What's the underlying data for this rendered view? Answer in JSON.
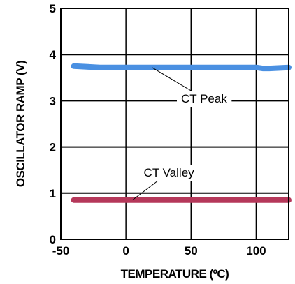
{
  "chart_data": {
    "type": "line",
    "xlabel": "TEMPERATURE (ºC)",
    "ylabel": "OSCILLATOR RAMP (V)",
    "xlim": [
      -50,
      125
    ],
    "ylim": [
      0,
      5
    ],
    "x_ticks": [
      "-50",
      "0",
      "50",
      "100"
    ],
    "y_ticks": [
      "0",
      "1",
      "2",
      "3",
      "4",
      "5"
    ],
    "grid": true,
    "series": [
      {
        "name": "CT Peak",
        "color": "#4a90e2",
        "x": [
          -40,
          -20,
          0,
          25,
          50,
          75,
          100,
          105,
          110,
          125
        ],
        "y": [
          3.75,
          3.72,
          3.72,
          3.72,
          3.72,
          3.72,
          3.72,
          3.7,
          3.7,
          3.72
        ]
      },
      {
        "name": "CT Valley",
        "color": "#b5385a",
        "x": [
          -40,
          -20,
          0,
          25,
          50,
          75,
          100,
          125
        ],
        "y": [
          0.85,
          0.85,
          0.85,
          0.85,
          0.85,
          0.85,
          0.85,
          0.85
        ]
      }
    ],
    "annotations": [
      {
        "text": "CT Peak",
        "x": 60,
        "y": 3.05,
        "target_x": 20,
        "target_y": 3.72
      },
      {
        "text": "CT Valley",
        "x": 33,
        "y": 1.45,
        "target_x": 5,
        "target_y": 0.85
      }
    ]
  }
}
